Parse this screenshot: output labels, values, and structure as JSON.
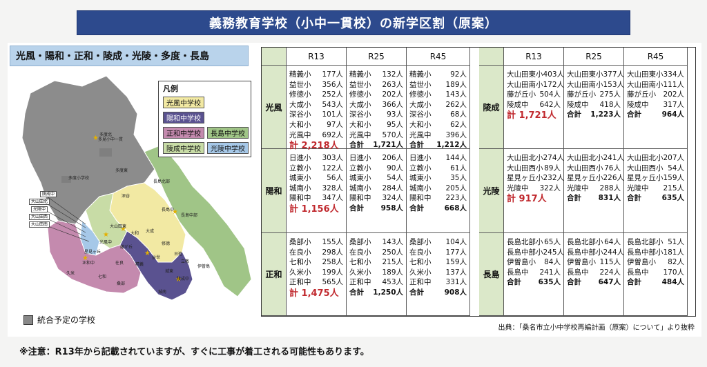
{
  "title": "義務教育学校（小中一貫校）の新学区割（原案）",
  "area_label": "光風・陽和・正和・陵成・光陵・多度・長島",
  "legend": {
    "title": "凡例",
    "items": [
      {
        "label": "光風中学校",
        "color": "#f2e9a3"
      },
      {
        "label": "陽和中学校",
        "color": "#5a5290"
      },
      {
        "label": "正和中学校",
        "color": "#c48aae"
      },
      {
        "label": "長島中学校",
        "color": "#a0c587"
      },
      {
        "label": "陵成中学校",
        "color": "#c8dca6"
      },
      {
        "label": "光陵中学校",
        "color": "#a6c8e8"
      }
    ]
  },
  "integration_label": "統合予定の学校",
  "map_labels": {
    "tado": "多度中",
    "tado_school": "多度小学校",
    "tado_north": "多度北",
    "tado_east": "多度東",
    "tado_blue": "多度青葉",
    "tado_center": "多見小中一貫",
    "nagashima_kita": "長島北部",
    "nagashima": "長島中",
    "nagashima_chubu": "長島中部",
    "ise": "伊曽島",
    "fukaya": "深谷",
    "daisei": "大成",
    "shugi": "修徳",
    "seigi": "精義",
    "eki": "益世",
    "yamato": "大和",
    "osd": "大山田東",
    "kofu": "光風中",
    "seiwa": "正和中",
    "zaira": "在良",
    "kubou": "久米",
    "kuwabe": "桑部",
    "nanakazu": "七和",
    "ryosei": "陵成中",
    "joto": "城東",
    "hinode": "日進",
    "rikkyo": "立教",
    "joto2": "城南",
    "hoshimi": "星見ヶ丘",
    "fuji": "藤が丘"
  },
  "map_tags": [
    "陵成中",
    "大山田北",
    "光陵中",
    "大山田西",
    "大山田南"
  ],
  "columns": [
    "R13",
    "R25",
    "R45"
  ],
  "left_rows": [
    {
      "name": "光風",
      "R13": {
        "items": [
          [
            "精義小",
            "177人"
          ],
          [
            "益世小",
            "356人"
          ],
          [
            "修徳小",
            "252人"
          ],
          [
            "大成小",
            "543人"
          ],
          [
            "深谷小",
            "101人"
          ],
          [
            "大和小",
            "97人"
          ],
          [
            "光風中",
            "692人"
          ]
        ],
        "big": "計 2,218人"
      },
      "R25": {
        "items": [
          [
            "精義小",
            "132人"
          ],
          [
            "益世小",
            "263人"
          ],
          [
            "修徳小",
            "202人"
          ],
          [
            "大成小",
            "366人"
          ],
          [
            "深谷小",
            "93人"
          ],
          [
            "大和小",
            "95人"
          ],
          [
            "光風中",
            "570人"
          ]
        ],
        "total": [
          "合計",
          "1,721人"
        ]
      },
      "R45": {
        "items": [
          [
            "精義小",
            "92人"
          ],
          [
            "益世小",
            "189人"
          ],
          [
            "修徳小",
            "143人"
          ],
          [
            "大成小",
            "262人"
          ],
          [
            "深谷小",
            "68人"
          ],
          [
            "大和小",
            "62人"
          ],
          [
            "光風中",
            "396人"
          ]
        ],
        "total": [
          "合計",
          "1,212人"
        ]
      }
    },
    {
      "name": "陽和",
      "R13": {
        "items": [
          [
            "日進小",
            "303人"
          ],
          [
            "立教小",
            "122人"
          ],
          [
            "城東小",
            "56人"
          ],
          [
            "城南小",
            "328人"
          ],
          [
            "陽和中",
            "347人"
          ]
        ],
        "big": "計 1,156人"
      },
      "R25": {
        "items": [
          [
            "日進小",
            "206人"
          ],
          [
            "立教小",
            "90人"
          ],
          [
            "城東小",
            "54人"
          ],
          [
            "城南小",
            "284人"
          ],
          [
            "陽和中",
            "324人"
          ]
        ],
        "total": [
          "合計",
          "958人"
        ]
      },
      "R45": {
        "items": [
          [
            "日進小",
            "144人"
          ],
          [
            "立教小",
            "61人"
          ],
          [
            "城東小",
            "35人"
          ],
          [
            "城南小",
            "205人"
          ],
          [
            "陽和中",
            "223人"
          ]
        ],
        "total": [
          "合計",
          "668人"
        ]
      }
    },
    {
      "name": "正和",
      "R13": {
        "items": [
          [
            "桑部小",
            "155人"
          ],
          [
            "在良小",
            "298人"
          ],
          [
            "七和小",
            "258人"
          ],
          [
            "久米小",
            "199人"
          ],
          [
            "正和中",
            "565人"
          ]
        ],
        "big": "計 1,475人"
      },
      "R25": {
        "items": [
          [
            "桑部小",
            "143人"
          ],
          [
            "在良小",
            "250人"
          ],
          [
            "七和小",
            "215人"
          ],
          [
            "久米小",
            "189人"
          ],
          [
            "正和中",
            "453人"
          ]
        ],
        "total": [
          "合計",
          "1,250人"
        ]
      },
      "R45": {
        "items": [
          [
            "桑部小",
            "104人"
          ],
          [
            "在良小",
            "177人"
          ],
          [
            "七和小",
            "159人"
          ],
          [
            "久米小",
            "137人"
          ],
          [
            "正和中",
            "331人"
          ]
        ],
        "total": [
          "合計",
          "908人"
        ]
      }
    }
  ],
  "right_rows": [
    {
      "name": "陵成",
      "R13": {
        "items": [
          [
            "大山田東小",
            "403人"
          ],
          [
            "大山田南小",
            "172人"
          ],
          [
            "藤が丘小",
            "504人"
          ],
          [
            "陵成中",
            "642人"
          ]
        ],
        "big": "計 1,721人"
      },
      "R25": {
        "items": [
          [
            "大山田東小",
            "377人"
          ],
          [
            "大山田南小",
            "153人"
          ],
          [
            "藤が丘小",
            "275人"
          ],
          [
            "陵成中",
            "418人"
          ]
        ],
        "total": [
          "合計",
          "1,223人"
        ]
      },
      "R45": {
        "items": [
          [
            "大山田東小",
            "334人"
          ],
          [
            "大山田南小",
            "111人"
          ],
          [
            "藤が丘小",
            "202人"
          ],
          [
            "陵成中",
            "317人"
          ]
        ],
        "total": [
          "合計",
          "964人"
        ]
      }
    },
    {
      "name": "光陵",
      "R13": {
        "items": [
          [
            "大山田北小",
            "274人"
          ],
          [
            "大山田西小",
            "89人"
          ],
          [
            "星見ヶ丘小",
            "232人"
          ],
          [
            "光陵中",
            "322人"
          ]
        ],
        "big": "計 917人"
      },
      "R25": {
        "items": [
          [
            "大山田北小",
            "241人"
          ],
          [
            "大山田西小",
            "76人"
          ],
          [
            "星見ヶ丘小",
            "226人"
          ],
          [
            "光陵中",
            "288人"
          ]
        ],
        "total": [
          "合計",
          "831人"
        ]
      },
      "R45": {
        "items": [
          [
            "大山田北小",
            "207人"
          ],
          [
            "大山田西小",
            "54人"
          ],
          [
            "星見ヶ丘小",
            "159人"
          ],
          [
            "光陵中",
            "215人"
          ]
        ],
        "total": [
          "合計",
          "635人"
        ]
      }
    },
    {
      "name": "長島",
      "R13": {
        "items": [
          [
            "長島北部小",
            "65人"
          ],
          [
            "長島中部小",
            "245人"
          ],
          [
            "伊曽島小",
            "84人"
          ],
          [
            "長島中",
            "241人"
          ]
        ],
        "total": [
          "合計",
          "635人"
        ]
      },
      "R25": {
        "items": [
          [
            "長島北部小",
            "64人"
          ],
          [
            "長島中部小",
            "244人"
          ],
          [
            "伊曽島小",
            "115人"
          ],
          [
            "長島中",
            "224人"
          ]
        ],
        "total": [
          "合計",
          "647人"
        ]
      },
      "R45": {
        "items": [
          [
            "長島北部小",
            "51人"
          ],
          [
            "長島中部小",
            "181人"
          ],
          [
            "伊曽島小",
            "82人"
          ],
          [
            "長島中",
            "170人"
          ]
        ],
        "total": [
          "合計",
          "484人"
        ]
      }
    }
  ],
  "source": "出典：「桑名市立小中学校再編計画（原案）について」より抜粋",
  "note": "※注意：R13年から記載されていますが、すぐに工事が着工される可能性もあります。"
}
